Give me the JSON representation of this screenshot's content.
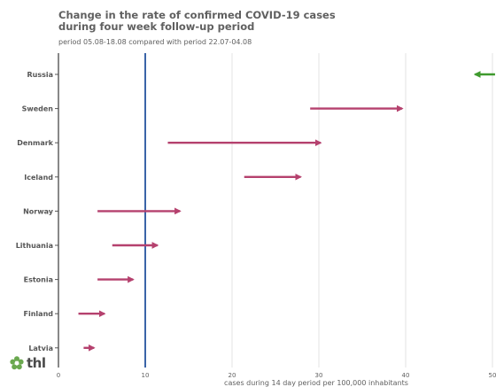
{
  "chart_data": {
    "type": "dumbbell-arrow",
    "title": "Change in the rate of confirmed COVID-19 cases\nduring four week follow-up period",
    "subtitle": "period 05.08-18.08 compared with period 22.07-04.08",
    "xlabel": "cases during 14 day period per 100,000 inhabitants",
    "ylabel": "",
    "xlim": [
      0,
      50
    ],
    "xticks": [
      0,
      10,
      20,
      30,
      40,
      50
    ],
    "reference_line": 10,
    "grid": "vertical",
    "categories": [
      "Russia",
      "Sweden",
      "Denmark",
      "Iceland",
      "Norway",
      "Lithuania",
      "Estonia",
      "Finland",
      "Latvia"
    ],
    "series": [
      {
        "values_from": [
          50.3,
          29.0,
          12.6,
          21.4,
          4.5,
          6.2,
          4.5,
          2.3,
          2.9
        ]
      },
      {
        "values_to": [
          48.0,
          39.6,
          30.2,
          27.9,
          14.0,
          11.4,
          8.6,
          5.3,
          4.1
        ]
      }
    ],
    "colors": {
      "increase": "#b5416e",
      "decrease": "#3f9a2e",
      "reference": "#3a64a8",
      "axis": "#555555",
      "grid": "#e3e3e3"
    }
  },
  "logo": {
    "text": "thl",
    "icon": "flower-icon",
    "color": "#6aa84f"
  }
}
